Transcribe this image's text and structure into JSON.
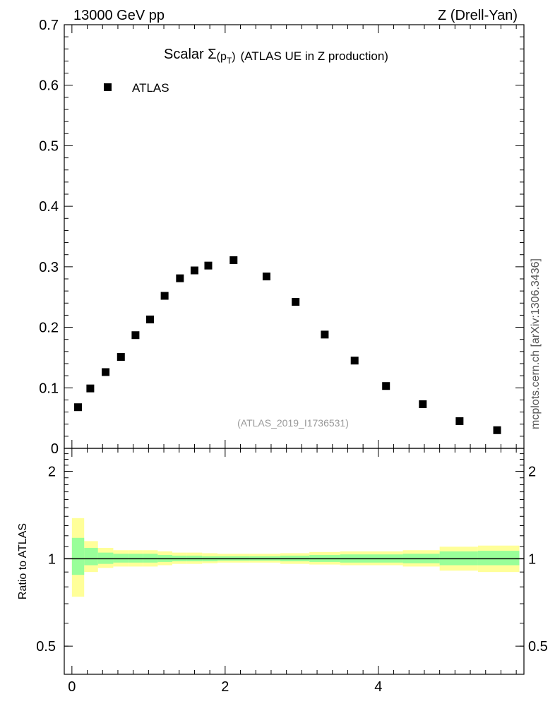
{
  "header": {
    "energy_label": "13000 GeV pp",
    "process_label": "Z (Drell-Yan)"
  },
  "side_label": "mcplots.cern.ch [arXiv:1306.3436]",
  "chart_data": [
    {
      "type": "scatter",
      "title": "Scalar Σ(p_T) (ATLAS UE in Z production)",
      "title_parts": {
        "prefix": "Scalar ",
        "sigma": "Σ",
        "open": "(p",
        "sub": "T",
        "close": ")",
        "rest": "(ATLAS UE in Z production)"
      },
      "analysis_label": "(ATLAS_2019_I1736531)",
      "xlim": [
        -0.1,
        5.9
      ],
      "ylim": [
        0,
        0.7
      ],
      "y_ticks": [
        "0",
        "0.1",
        "0.2",
        "0.3",
        "0.4",
        "0.5",
        "0.6",
        "0.7"
      ],
      "legend": {
        "placement": "top-left",
        "entries": [
          "ATLAS"
        ]
      },
      "series": [
        {
          "name": "ATLAS",
          "marker": "square",
          "color": "#000000",
          "x": [
            0.08,
            0.24,
            0.44,
            0.64,
            0.83,
            1.02,
            1.21,
            1.41,
            1.6,
            1.78,
            2.11,
            2.54,
            2.92,
            3.3,
            3.69,
            4.1,
            4.58,
            5.06,
            5.55
          ],
          "y": [
            0.068,
            0.099,
            0.126,
            0.151,
            0.187,
            0.213,
            0.252,
            0.281,
            0.294,
            0.302,
            0.311,
            0.284,
            0.242,
            0.188,
            0.145,
            0.103,
            0.073,
            0.045,
            0.03
          ]
        }
      ]
    },
    {
      "type": "area",
      "ylabel": "Ratio to ATLAS",
      "xlim": [
        -0.1,
        5.9
      ],
      "ylim": [
        0.4,
        2.4
      ],
      "y_scale": "log",
      "x_ticks": [
        "0",
        "2",
        "4"
      ],
      "y_ticks": [
        "0.5",
        "1",
        "2"
      ],
      "reference_line": 1,
      "band_colors": {
        "inner": "#99ff99",
        "outer": "#ffff99"
      },
      "bins": [
        {
          "lo": 0.0,
          "hi": 0.16,
          "inner": [
            0.88,
            1.18
          ],
          "outer": [
            0.74,
            1.38
          ]
        },
        {
          "lo": 0.16,
          "hi": 0.34,
          "inner": [
            0.95,
            1.09
          ],
          "outer": [
            0.9,
            1.15
          ]
        },
        {
          "lo": 0.34,
          "hi": 0.54,
          "inner": [
            0.96,
            1.05
          ],
          "outer": [
            0.93,
            1.09
          ]
        },
        {
          "lo": 0.54,
          "hi": 0.74,
          "inner": [
            0.97,
            1.04
          ],
          "outer": [
            0.94,
            1.07
          ]
        },
        {
          "lo": 0.74,
          "hi": 0.93,
          "inner": [
            0.97,
            1.04
          ],
          "outer": [
            0.94,
            1.07
          ]
        },
        {
          "lo": 0.93,
          "hi": 1.12,
          "inner": [
            0.97,
            1.04
          ],
          "outer": [
            0.94,
            1.07
          ]
        },
        {
          "lo": 1.12,
          "hi": 1.31,
          "inner": [
            0.975,
            1.03
          ],
          "outer": [
            0.95,
            1.06
          ]
        },
        {
          "lo": 1.31,
          "hi": 1.5,
          "inner": [
            0.98,
            1.025
          ],
          "outer": [
            0.96,
            1.05
          ]
        },
        {
          "lo": 1.5,
          "hi": 1.7,
          "inner": [
            0.98,
            1.025
          ],
          "outer": [
            0.96,
            1.05
          ]
        },
        {
          "lo": 1.7,
          "hi": 1.9,
          "inner": [
            0.98,
            1.02
          ],
          "outer": [
            0.965,
            1.045
          ]
        },
        {
          "lo": 1.9,
          "hi": 2.32,
          "inner": [
            0.985,
            1.02
          ],
          "outer": [
            0.97,
            1.04
          ]
        },
        {
          "lo": 2.32,
          "hi": 2.72,
          "inner": [
            0.985,
            1.02
          ],
          "outer": [
            0.97,
            1.04
          ]
        },
        {
          "lo": 2.72,
          "hi": 3.1,
          "inner": [
            0.98,
            1.025
          ],
          "outer": [
            0.96,
            1.045
          ]
        },
        {
          "lo": 3.1,
          "hi": 3.5,
          "inner": [
            0.975,
            1.03
          ],
          "outer": [
            0.955,
            1.055
          ]
        },
        {
          "lo": 3.5,
          "hi": 3.9,
          "inner": [
            0.97,
            1.035
          ],
          "outer": [
            0.95,
            1.06
          ]
        },
        {
          "lo": 3.9,
          "hi": 4.32,
          "inner": [
            0.97,
            1.035
          ],
          "outer": [
            0.95,
            1.06
          ]
        },
        {
          "lo": 4.32,
          "hi": 4.8,
          "inner": [
            0.965,
            1.04
          ],
          "outer": [
            0.94,
            1.07
          ]
        },
        {
          "lo": 4.8,
          "hi": 5.3,
          "inner": [
            0.95,
            1.06
          ],
          "outer": [
            0.91,
            1.1
          ]
        },
        {
          "lo": 5.3,
          "hi": 5.84,
          "inner": [
            0.95,
            1.065
          ],
          "outer": [
            0.9,
            1.11
          ]
        }
      ]
    }
  ]
}
